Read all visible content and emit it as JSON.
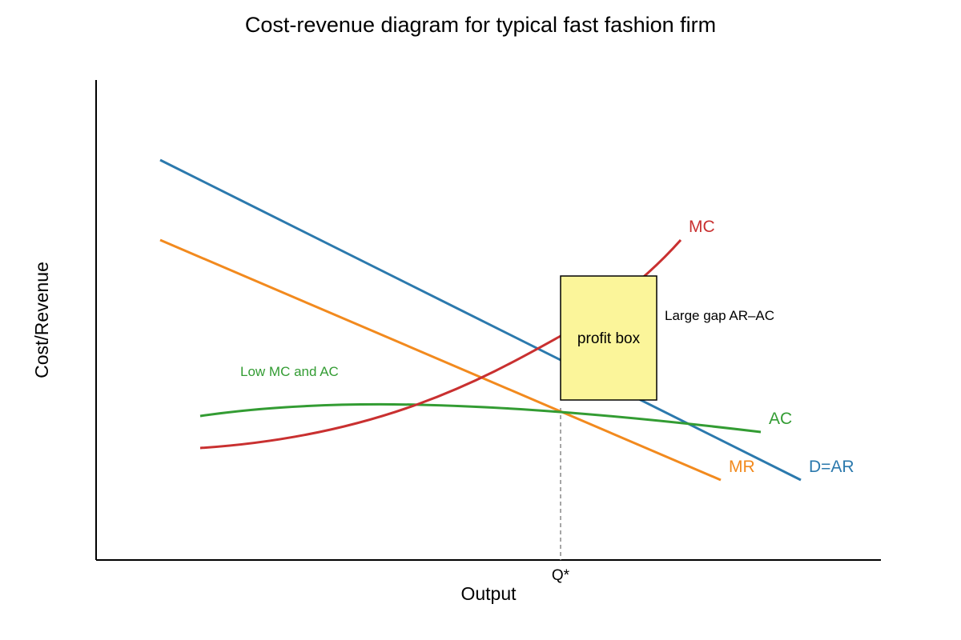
{
  "diagram": {
    "title": "Cost-revenue diagram for typical fast fashion firm",
    "x_axis_label": "Output",
    "y_axis_label": "Cost/Revenue",
    "q_star_label": "Q*",
    "curves": {
      "mc": {
        "label": "MC",
        "color": "#c93030"
      },
      "dar": {
        "label": "D=AR",
        "color": "#2b79ad"
      },
      "mr": {
        "label": "MR",
        "color": "#f28a1e"
      },
      "ac": {
        "label": "AC",
        "color": "#339c33"
      }
    },
    "profit_box": {
      "label": "profit box",
      "fill": "#fbf59a",
      "gap_note": "Large gap AR–AC"
    },
    "low_cost_note": "Low MC and AC"
  }
}
